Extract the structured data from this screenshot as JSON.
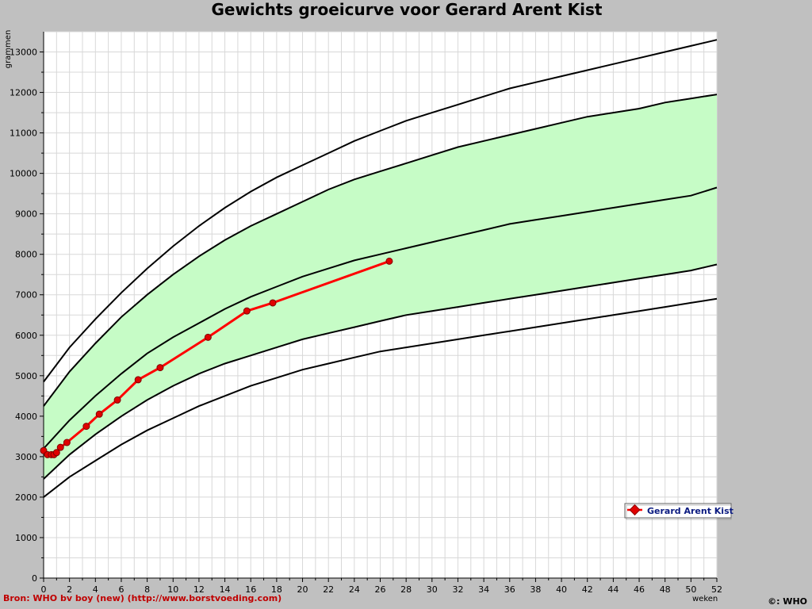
{
  "chart_data": {
    "type": "line",
    "title": "Gewichts groeicurve voor Gerard Arent Kist",
    "xlabel": "weken",
    "ylabel": "grammen",
    "xlim": [
      0,
      52
    ],
    "ylim": [
      0,
      13500
    ],
    "grid": true,
    "x_ticks": [
      0,
      2,
      4,
      6,
      8,
      10,
      12,
      14,
      16,
      18,
      20,
      22,
      24,
      26,
      28,
      30,
      32,
      34,
      36,
      38,
      40,
      42,
      44,
      46,
      48,
      50,
      52
    ],
    "y_ticks": [
      0,
      1000,
      2000,
      3000,
      4000,
      5000,
      6000,
      7000,
      8000,
      9000,
      10000,
      11000,
      12000,
      13000
    ],
    "percentile_x": [
      0,
      2,
      4,
      6,
      8,
      10,
      12,
      14,
      16,
      18,
      20,
      22,
      24,
      26,
      28,
      30,
      32,
      34,
      36,
      38,
      40,
      42,
      44,
      46,
      48,
      50,
      52
    ],
    "percentile_curves": [
      {
        "role": "outer-upper",
        "values": [
          4850,
          5700,
          6400,
          7050,
          7650,
          8200,
          8700,
          9150,
          9550,
          9900,
          10200,
          10500,
          10800,
          11050,
          11300,
          11500,
          11700,
          11900,
          12100,
          12250,
          12400,
          12550,
          12700,
          12850,
          13000,
          13150,
          13300
        ]
      },
      {
        "role": "band-upper",
        "values": [
          4250,
          5100,
          5800,
          6450,
          7000,
          7500,
          7950,
          8350,
          8700,
          9000,
          9300,
          9600,
          9850,
          10050,
          10250,
          10450,
          10650,
          10800,
          10950,
          11100,
          11250,
          11400,
          11500,
          11600,
          11750,
          11850,
          11950
        ]
      },
      {
        "role": "median",
        "values": [
          3200,
          3900,
          4500,
          5050,
          5550,
          5950,
          6300,
          6650,
          6950,
          7200,
          7450,
          7650,
          7850,
          8000,
          8150,
          8300,
          8450,
          8600,
          8750,
          8850,
          8950,
          9050,
          9150,
          9250,
          9350,
          9450,
          9650
        ]
      },
      {
        "role": "band-lower",
        "values": [
          2450,
          3050,
          3550,
          4000,
          4400,
          4750,
          5050,
          5300,
          5500,
          5700,
          5900,
          6050,
          6200,
          6350,
          6500,
          6600,
          6700,
          6800,
          6900,
          7000,
          7100,
          7200,
          7300,
          7400,
          7500,
          7600,
          7750
        ]
      },
      {
        "role": "outer-lower",
        "values": [
          2000,
          2500,
          2900,
          3300,
          3650,
          3950,
          4250,
          4500,
          4750,
          4950,
          5150,
          5300,
          5450,
          5600,
          5700,
          5800,
          5900,
          6000,
          6100,
          6200,
          6300,
          6400,
          6500,
          6600,
          6700,
          6800,
          6900
        ]
      }
    ],
    "series": [
      {
        "name": "Gerard Arent Kist",
        "x": [
          0,
          0.3,
          0.6,
          0.8,
          1.0,
          1.3,
          1.8,
          3.3,
          4.3,
          5.7,
          7.3,
          9.0,
          12.7,
          15.7,
          17.7,
          26.7
        ],
        "y": [
          3150,
          3050,
          3050,
          3050,
          3100,
          3230,
          3350,
          3750,
          4050,
          4400,
          4900,
          5200,
          5950,
          6600,
          6800,
          7830
        ]
      }
    ],
    "legend": {
      "position": "bottom-right",
      "label": "Gerard Arent Kist"
    },
    "source_note": "Bron: WHO bv boy (new) (http://www.borstvoeding.com)",
    "copyright": "©: WHO"
  },
  "colors": {
    "background": "#c0c0c0",
    "plot_bg": "#ffffff",
    "grid": "#d8d8d8",
    "band_fill": "#c6fcc6",
    "curve": "#000000",
    "series": "#ff0000",
    "marker_fill": "#e00000",
    "source_text": "#c00000",
    "legend_text": "#0a1a80"
  }
}
